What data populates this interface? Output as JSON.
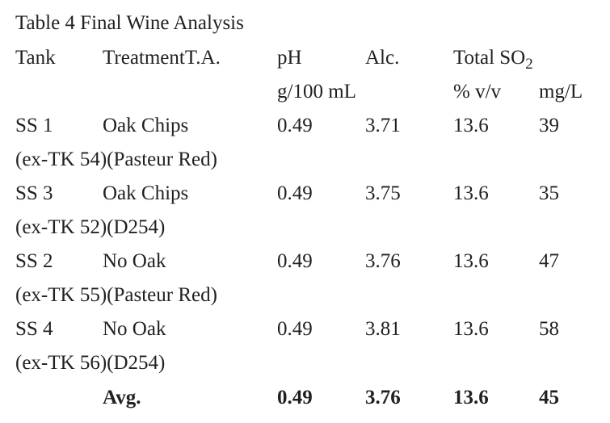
{
  "table": {
    "caption": "Table 4  Final Wine Analysis",
    "header": {
      "tank": "Tank",
      "treatment_ta": "TreatmentT.A.",
      "ph": "pH",
      "alc": "Alc.",
      "total_so2_prefix": "Total SO",
      "total_so2_subscript": "2",
      "units_ta": "g/100 mL",
      "units_alc": "% v/v",
      "units_so2": "mg/L"
    },
    "rows": [
      {
        "tank": "SS 1",
        "treatment": "Oak Chips",
        "ta": "0.49",
        "ph": "3.71",
        "alc": "13.6",
        "so2": "39",
        "note": "(ex-TK 54)(Pasteur Red)"
      },
      {
        "tank": "SS 3",
        "treatment": "Oak Chips",
        "ta": "0.49",
        "ph": "3.75",
        "alc": "13.6",
        "so2": "35",
        "note": "(ex-TK 52)(D254)"
      },
      {
        "tank": "SS 2",
        "treatment": "No Oak",
        "ta": "0.49",
        "ph": "3.76",
        "alc": "13.6",
        "so2": "47",
        "note": "(ex-TK 55)(Pasteur Red)"
      },
      {
        "tank": "SS 4",
        "treatment": "No Oak",
        "ta": "0.49",
        "ph": "3.81",
        "alc": "13.6",
        "so2": "58",
        "note": "(ex-TK 56)(D254)"
      }
    ],
    "average": {
      "label": "Avg.",
      "ta": "0.49",
      "ph": "3.76",
      "alc": "13.6",
      "so2": "45"
    }
  }
}
